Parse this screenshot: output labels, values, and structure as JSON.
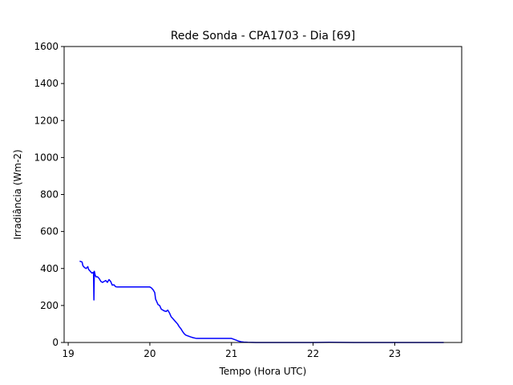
{
  "chart_data": {
    "type": "line",
    "title": "Rede Sonda - CPA1703 - Dia [69]",
    "xlabel": "Tempo (Hora UTC)",
    "ylabel": "Irradiância (Wm-2)",
    "xlim": [
      18.95,
      23.82
    ],
    "ylim": [
      0,
      1600
    ],
    "xticks": [
      19,
      20,
      21,
      22,
      23
    ],
    "yticks": [
      0,
      200,
      400,
      600,
      800,
      1000,
      1200,
      1400,
      1600
    ],
    "grid": false,
    "series": [
      {
        "color": "#0000ff",
        "x": [
          19.14,
          19.17,
          19.18,
          19.2,
          19.22,
          19.24,
          19.25,
          19.27,
          19.29,
          19.31,
          19.315,
          19.32,
          19.33,
          19.34,
          19.36,
          19.38,
          19.4,
          19.42,
          19.44,
          19.46,
          19.48,
          19.5,
          19.52,
          19.54,
          19.56,
          19.58,
          19.6,
          19.65,
          19.7,
          19.8,
          19.9,
          20.0,
          20.02,
          20.04,
          20.06,
          20.07,
          20.08,
          20.1,
          20.12,
          20.14,
          20.16,
          20.18,
          20.2,
          20.22,
          20.24,
          20.26,
          20.28,
          20.3,
          20.32,
          20.34,
          20.36,
          20.38,
          20.4,
          20.42,
          20.44,
          20.47,
          20.5,
          20.53,
          20.56,
          20.58,
          20.6,
          20.7,
          20.8,
          20.9,
          21.0,
          21.03,
          21.06,
          21.09,
          21.12,
          21.15,
          21.2,
          21.3,
          21.5,
          22.0,
          22.2,
          22.5,
          23.0,
          23.6
        ],
        "y": [
          440,
          435,
          415,
          405,
          400,
          410,
          395,
          385,
          375,
          380,
          230,
          385,
          365,
          355,
          355,
          345,
          330,
          325,
          330,
          335,
          325,
          340,
          330,
          310,
          312,
          302,
          300,
          300,
          300,
          300,
          300,
          300,
          295,
          285,
          270,
          235,
          225,
          205,
          200,
          180,
          175,
          170,
          168,
          175,
          160,
          140,
          130,
          120,
          110,
          100,
          85,
          75,
          60,
          48,
          40,
          35,
          30,
          26,
          23,
          22,
          22,
          22,
          22,
          22,
          22,
          17,
          12,
          7,
          4,
          2,
          1,
          0,
          0,
          0,
          1,
          0,
          0,
          0
        ]
      }
    ]
  }
}
